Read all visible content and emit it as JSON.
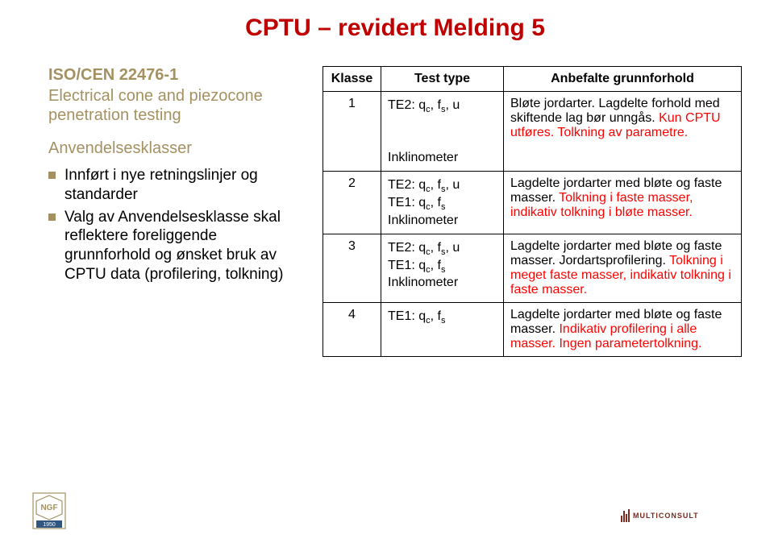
{
  "title_color": "#C00000",
  "accent_color": "#A39161",
  "title": "CPTU – revidert Melding 5",
  "left": {
    "std_title": "ISO/CEN 22476-1",
    "std_sub": "Electrical cone and piezocone penetration testing",
    "heading": "Anvendelsesklasser",
    "bullets": [
      "Innført i nye retningslinjer og standarder",
      "Valg av Anvendelsesklasse skal reflektere foreliggende grunnforhold og ønsket bruk av CPTU data (profilering, tolkning)"
    ]
  },
  "table": {
    "headers": [
      "Klasse",
      "Test type",
      "Anbefalte grunnforhold"
    ],
    "rows": [
      {
        "klasse": "1",
        "test_lines": [
          "TE2: q_c, f_s, u",
          "",
          "Inklinometer"
        ],
        "desc_plain": "Bløte jordarter. Lagdelte forhold med skiftende lag bør unngås. ",
        "desc_red": "Kun CPTU utføres. Tolkning av parametre."
      },
      {
        "klasse": "2",
        "test_lines": [
          "TE2: q_c, f_s, u",
          "TE1: q_c, f_s",
          "Inklinometer"
        ],
        "desc_plain": "Lagdelte jordarter med bløte og faste masser. ",
        "desc_red": "Tolkning i faste masser, indikativ tolkning i bløte masser."
      },
      {
        "klasse": "3",
        "test_lines": [
          "TE2: q_c, f_s, u",
          "TE1: q_c, f_s",
          "Inklinometer"
        ],
        "desc_plain": "Lagdelte jordarter med bløte og faste masser. Jordartsprofilering. ",
        "desc_red": "Tolkning i meget faste masser, indikativ tolkning i faste masser."
      },
      {
        "klasse": "4",
        "test_lines": [
          "TE1: q_c, f_s"
        ],
        "desc_plain": "Lagdelte jordarter med bløte og faste masser. ",
        "desc_red": "Indikativ profilering i alle masser. Ingen parametertolkning."
      }
    ]
  },
  "logo_left": {
    "line1": "NGF",
    "line2": "1950",
    "border_color": "#A39161"
  },
  "logo_right": {
    "text": "MULTICONSULT"
  }
}
